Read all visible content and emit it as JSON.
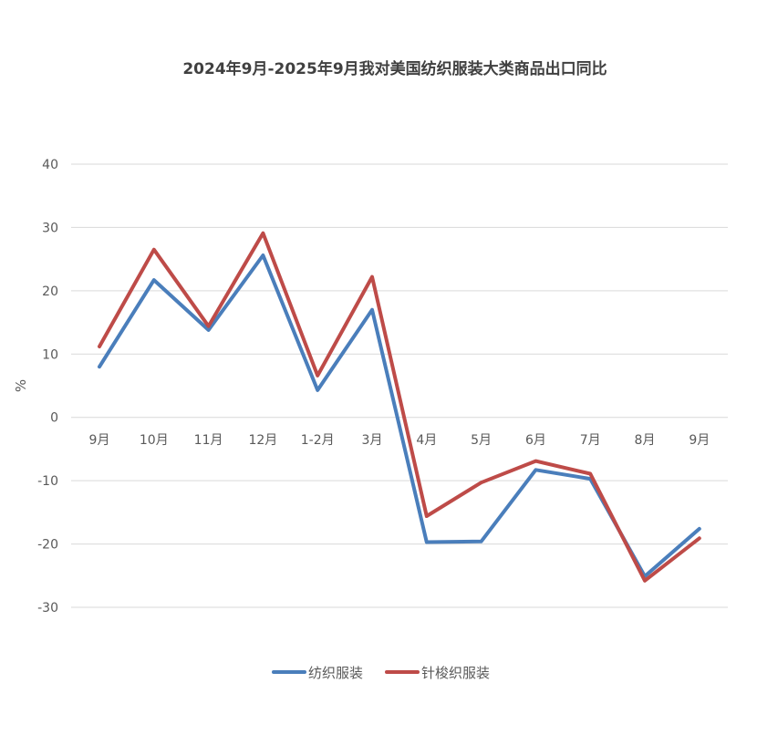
{
  "chart_data": {
    "type": "line",
    "title": "2024年9月-2025年9月我对美国纺织服装大类商品出口同比",
    "xlabel": "",
    "ylabel": "%",
    "ylim": [
      -30,
      40
    ],
    "yticks": [
      40,
      30,
      20,
      10,
      0,
      -10,
      -20,
      -30
    ],
    "ytick_labels": [
      "40",
      "30",
      "20",
      "10",
      "0",
      "-10",
      "-20",
      "-30"
    ],
    "grid": true,
    "legend_position": "bottom-center",
    "categories": [
      "9月",
      "10月",
      "11月",
      "12月",
      "1-2月",
      "3月",
      "4月",
      "5月",
      "6月",
      "7月",
      "8月",
      "9月"
    ],
    "series": [
      {
        "name": "纺织服装",
        "color": "#4a7ebb",
        "values": [
          8,
          21.7,
          13.8,
          25.6,
          4.3,
          17,
          -19.7,
          -19.6,
          -8.3,
          -9.7,
          -25.1,
          -17.6
        ]
      },
      {
        "name": "针梭织服装",
        "color": "#be4b48",
        "values": [
          11.2,
          26.5,
          14.4,
          29.1,
          6.6,
          22.2,
          -15.6,
          -10.3,
          -6.9,
          -8.9,
          -25.8,
          -19.1
        ]
      }
    ]
  }
}
